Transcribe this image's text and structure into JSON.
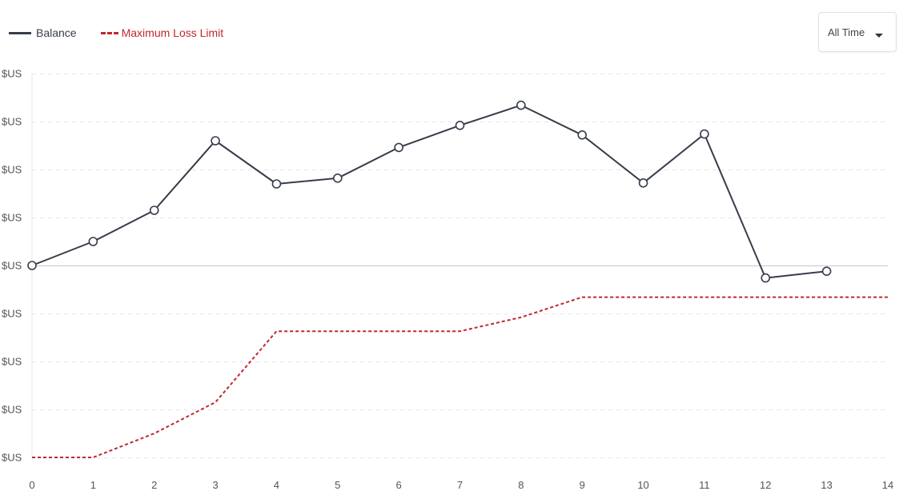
{
  "legend": {
    "balance_label": "Balance",
    "limit_label": "Maximum Loss Limit"
  },
  "range_select": {
    "selected": "All Time"
  },
  "colors": {
    "balance": "#363d4a",
    "limit": "#c0282d",
    "grid": "#e6e6e6",
    "zero_line": "#c8c8c8"
  },
  "chart_data": {
    "type": "line",
    "x": [
      0,
      1,
      2,
      3,
      4,
      5,
      6,
      7,
      8,
      9,
      10,
      11,
      12,
      13,
      14
    ],
    "xlim": [
      0,
      14
    ],
    "ylim": [
      -4,
      4
    ],
    "y_tick_values": [
      4,
      3,
      2,
      1,
      0,
      -1,
      -2,
      -3,
      -4
    ],
    "y_tick_labels": [
      "$US",
      "$US",
      "$US",
      "$US",
      "$US",
      "$US",
      "$US",
      "$US",
      "$US"
    ],
    "x_tick_labels": [
      "0",
      "1",
      "2",
      "3",
      "4",
      "5",
      "6",
      "7",
      "8",
      "9",
      "10",
      "11",
      "12",
      "13",
      "14"
    ],
    "grid": true,
    "legend_position": "top-left",
    "series": [
      {
        "name": "Balance",
        "style": "solid",
        "markers": true,
        "x": [
          0,
          1,
          2,
          3,
          4,
          5,
          6,
          7,
          8,
          9,
          10,
          11,
          12,
          13
        ],
        "values": [
          0,
          0.5,
          1.15,
          2.6,
          1.7,
          1.82,
          2.46,
          2.92,
          3.34,
          2.72,
          1.72,
          2.74,
          -0.26,
          -0.12
        ]
      },
      {
        "name": "Maximum Loss Limit",
        "style": "dashed",
        "markers": false,
        "x": [
          0,
          1,
          2,
          3,
          4,
          5,
          6,
          7,
          8,
          9,
          10,
          11,
          12,
          13,
          14
        ],
        "values": [
          -4,
          -4,
          -3.5,
          -2.85,
          -1.37,
          -1.37,
          -1.37,
          -1.37,
          -1.08,
          -0.66,
          -0.66,
          -0.66,
          -0.66,
          -0.66,
          -0.66
        ]
      }
    ]
  }
}
